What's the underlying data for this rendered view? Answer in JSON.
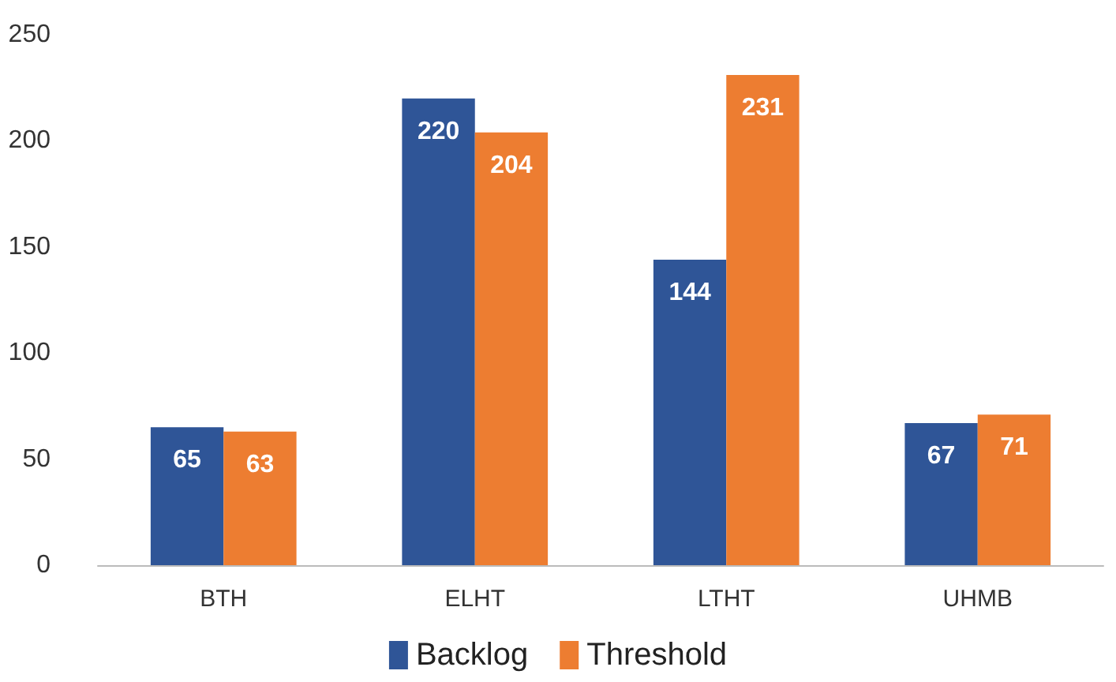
{
  "chart_data": {
    "type": "bar",
    "categories": [
      "BTH",
      "ELHT",
      "LTHT",
      "UHMB"
    ],
    "series": [
      {
        "name": "Backlog",
        "color": "#2f5597",
        "values": [
          65,
          220,
          144,
          67
        ]
      },
      {
        "name": "Threshold",
        "color": "#ed7d31",
        "values": [
          63,
          204,
          231,
          71
        ]
      }
    ],
    "ylim": [
      0,
      250
    ],
    "yticks": [
      0,
      50,
      100,
      150,
      200,
      250
    ],
    "grid": false,
    "legend": "bottom",
    "data_labels": true
  }
}
